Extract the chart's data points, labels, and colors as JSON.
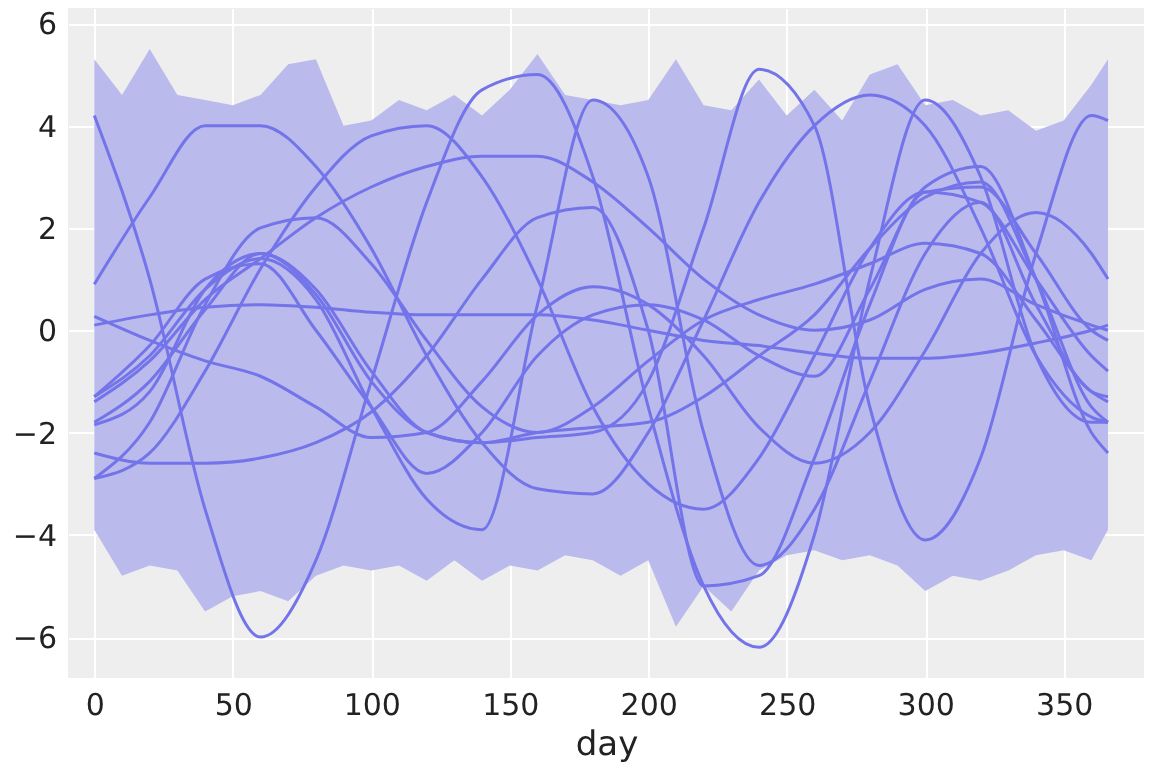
{
  "chart_data": {
    "type": "line",
    "xlabel": "day",
    "xlim": [
      -9.5,
      379
    ],
    "xticks": [
      0,
      50,
      100,
      150,
      200,
      250,
      300,
      350
    ],
    "ylim": [
      -6.8,
      6.3
    ],
    "yticks": [
      -6,
      -4,
      -2,
      0,
      2,
      4,
      6
    ],
    "grid": true,
    "line_style": "solid",
    "marker": "none",
    "x": [
      0,
      20,
      40,
      60,
      80,
      100,
      120,
      140,
      160,
      180,
      200,
      220,
      240,
      260,
      280,
      300,
      320,
      340,
      360,
      366
    ],
    "series": [
      {
        "type": "area",
        "color": "#babaec",
        "values": [
          null,
          null,
          null,
          null,
          null,
          null,
          null,
          null,
          null,
          null,
          null,
          null,
          null,
          null,
          null,
          null,
          null,
          null,
          null,
          null,
          null,
          null,
          null,
          null,
          null,
          null,
          null,
          null,
          null,
          null,
          null,
          null,
          null,
          null,
          null,
          null,
          null,
          null
        ],
        "x": [
          0,
          10,
          20,
          30,
          40,
          50,
          60,
          70,
          80,
          90,
          100,
          110,
          120,
          130,
          140,
          150,
          160,
          170,
          180,
          190,
          200,
          210,
          220,
          230,
          240,
          250,
          260,
          270,
          280,
          290,
          300,
          310,
          320,
          330,
          340,
          350,
          360,
          366
        ],
        "upper": [
          5.3,
          4.6,
          5.5,
          4.6,
          4.5,
          4.4,
          4.6,
          5.2,
          5.3,
          4.0,
          4.1,
          4.5,
          4.3,
          4.6,
          4.2,
          4.7,
          5.4,
          4.6,
          4.5,
          4.4,
          4.5,
          5.3,
          4.4,
          4.3,
          4.9,
          4.2,
          4.7,
          4.1,
          5.0,
          5.2,
          4.4,
          4.5,
          4.2,
          4.3,
          3.9,
          4.1,
          4.8,
          5.3
        ],
        "lower": [
          -3.9,
          -4.8,
          -4.6,
          -4.7,
          -5.5,
          -5.2,
          -5.1,
          -5.3,
          -4.8,
          -4.6,
          -4.7,
          -4.6,
          -4.9,
          -4.5,
          -4.9,
          -4.6,
          -4.7,
          -4.4,
          -4.5,
          -4.8,
          -4.5,
          -5.8,
          -5.0,
          -5.5,
          -4.7,
          -4.4,
          -4.3,
          -4.5,
          -4.4,
          -4.6,
          -5.1,
          -4.8,
          -4.9,
          -4.7,
          -4.4,
          -4.3,
          -4.5,
          -3.9
        ]
      },
      {
        "color": "#7474ea",
        "values": [
          4.2,
          1.0,
          -3.5,
          -6.0,
          -4.5,
          -1.0,
          2.5,
          4.7,
          5.0,
          3.0,
          -1.5,
          -5.0,
          -6.2,
          -4.0,
          1.0,
          4.5,
          3.0,
          -0.5,
          -1.8,
          -1.8
        ]
      },
      {
        "color": "#7474ea",
        "values": [
          0.9,
          2.6,
          4.0,
          4.0,
          3.2,
          1.6,
          -0.5,
          -2.2,
          -3.1,
          -3.2,
          -2.0,
          0.2,
          2.5,
          4.0,
          4.6,
          4.0,
          2.0,
          -0.5,
          -1.7,
          -1.8
        ]
      },
      {
        "color": "#7474ea",
        "values": [
          -2.9,
          -2.4,
          -0.8,
          1.2,
          2.8,
          3.8,
          4.0,
          3.0,
          1.0,
          -1.5,
          -3.0,
          -3.5,
          -2.5,
          -0.5,
          1.6,
          2.7,
          2.5,
          1.0,
          -0.5,
          -0.8
        ]
      },
      {
        "color": "#7474ea",
        "values": [
          -1.3,
          -0.5,
          0.8,
          1.4,
          0.6,
          -1.5,
          -3.3,
          -3.9,
          0.5,
          4.5,
          3.0,
          -2.0,
          -4.6,
          -3.5,
          -1.0,
          1.5,
          2.5,
          0.5,
          -1.2,
          -1.3
        ]
      },
      {
        "color": "#7474ea",
        "values": [
          -1.85,
          -1.2,
          0.8,
          1.5,
          0.8,
          -0.8,
          -2.0,
          -2.2,
          -2.1,
          -2.0,
          -1.0,
          2.0,
          5.1,
          4.0,
          -1.5,
          -4.1,
          -2.5,
          1.5,
          4.2,
          4.1
        ]
      },
      {
        "color": "#7474ea",
        "values": [
          -1.4,
          -0.6,
          0.6,
          1.4,
          2.2,
          2.8,
          3.2,
          3.4,
          3.4,
          2.9,
          2.0,
          1.0,
          0.3,
          0.0,
          0.2,
          0.8,
          1.0,
          0.5,
          0.1,
          0.0
        ]
      },
      {
        "color": "#7474ea",
        "values": [
          -2.4,
          -2.6,
          -2.6,
          -2.5,
          -2.2,
          -1.6,
          -0.5,
          1.0,
          2.2,
          2.4,
          0.0,
          -5.0,
          -4.8,
          -2.5,
          0.5,
          2.7,
          2.8,
          1.5,
          0.0,
          -0.2
        ]
      },
      {
        "color": "#7474ea",
        "values": [
          0.1,
          0.3,
          0.45,
          0.5,
          0.45,
          0.35,
          0.3,
          0.3,
          0.3,
          0.2,
          0.0,
          -0.2,
          -0.3,
          -0.45,
          -0.55,
          -0.55,
          -0.45,
          -0.25,
          0.0,
          0.1
        ]
      },
      {
        "color": "#7474ea",
        "values": [
          0.27,
          -0.2,
          -0.6,
          -0.9,
          -1.5,
          -2.1,
          -2.0,
          -1.0,
          0.3,
          0.85,
          0.5,
          -0.5,
          -1.9,
          -2.6,
          -2.0,
          -0.4,
          1.5,
          2.3,
          1.5,
          1.0
        ]
      },
      {
        "color": "#7474ea",
        "values": [
          -1.8,
          -1.0,
          0.4,
          1.5,
          0.7,
          -1.0,
          -2.0,
          -2.2,
          -2.0,
          -1.9,
          -1.8,
          -1.3,
          -0.5,
          0.3,
          1.6,
          2.6,
          2.9,
          1.0,
          -1.5,
          -1.8
        ]
      },
      {
        "color": "#7474ea",
        "values": [
          -2.9,
          -1.8,
          0.5,
          2.0,
          2.2,
          1.3,
          -0.2,
          -1.5,
          -2.0,
          -1.5,
          -0.6,
          0.2,
          0.6,
          0.9,
          1.3,
          1.7,
          1.5,
          0.2,
          -1.2,
          -1.4
        ]
      },
      {
        "color": "#7474ea",
        "values": [
          -1.3,
          -0.3,
          1.0,
          1.3,
          0.0,
          -1.5,
          -2.8,
          -2.0,
          -0.5,
          0.3,
          0.5,
          0.2,
          -0.5,
          -0.9,
          0.8,
          2.8,
          3.2,
          1.0,
          -2.0,
          -2.4
        ]
      }
    ]
  }
}
